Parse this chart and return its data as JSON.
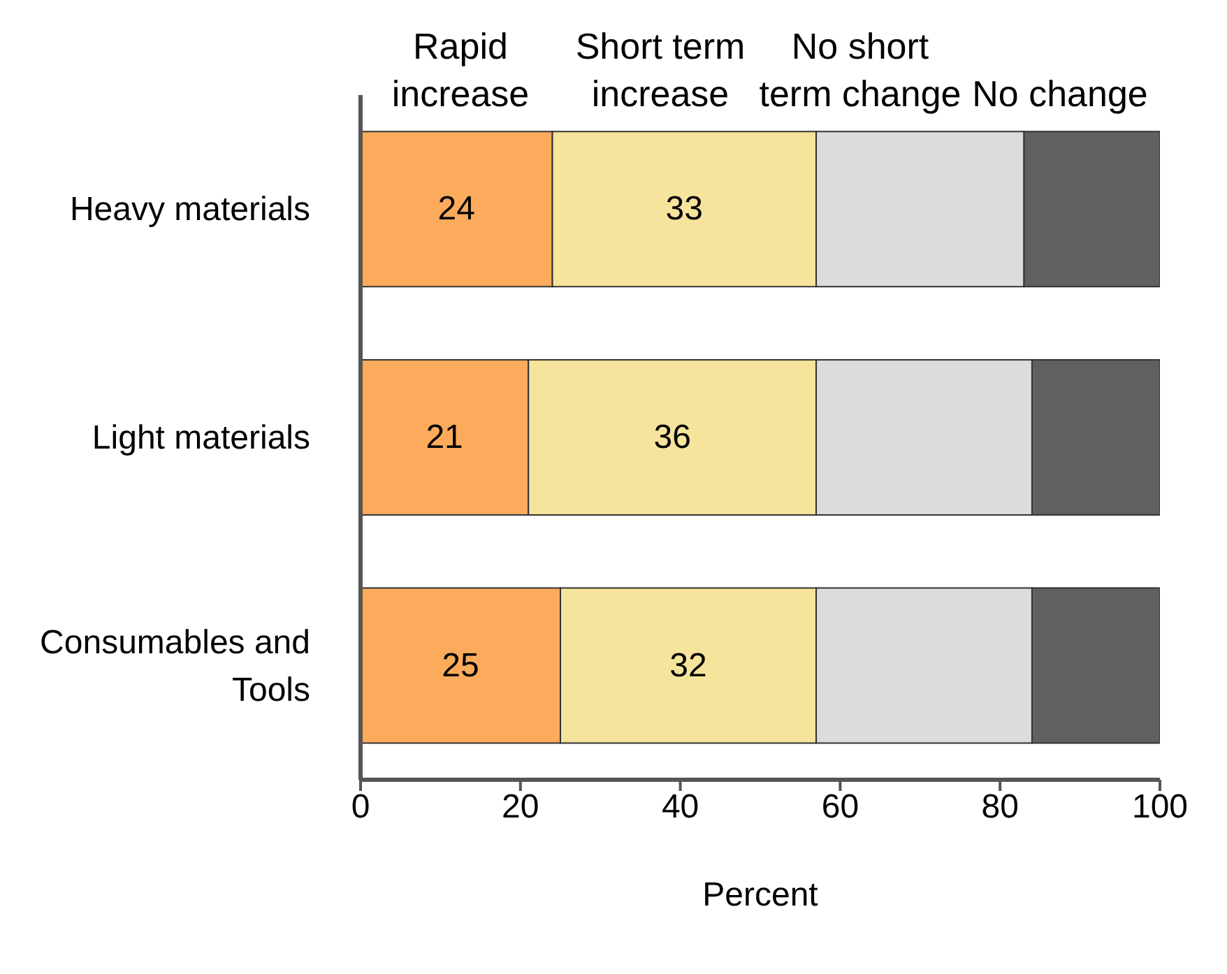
{
  "chart_data": {
    "type": "bar",
    "orientation": "horizontal",
    "stacked": true,
    "xlabel": "Percent",
    "categories": [
      "Heavy materials",
      "Light materials",
      "Consumables and Tools"
    ],
    "series": [
      {
        "name": "Rapid increase",
        "color": "#fcab5c",
        "values": [
          24,
          21,
          25
        ],
        "value_labels": [
          "24",
          "21",
          "25"
        ]
      },
      {
        "name": "Short term increase",
        "color": "#f6e49c",
        "values": [
          33,
          36,
          32
        ],
        "value_labels": [
          "33",
          "36",
          "32"
        ]
      },
      {
        "name": "No short term change",
        "color": "#dcdcdc",
        "values": [
          26,
          27,
          27
        ],
        "value_labels": [
          null,
          null,
          null
        ]
      },
      {
        "name": "No change",
        "color": "#606060",
        "values": [
          17,
          16,
          16
        ],
        "value_labels": [
          null,
          null,
          null
        ]
      }
    ],
    "xlim": [
      0,
      100
    ],
    "xticks": [
      0,
      20,
      40,
      60,
      80,
      100
    ],
    "legend": "top",
    "grid": false
  }
}
